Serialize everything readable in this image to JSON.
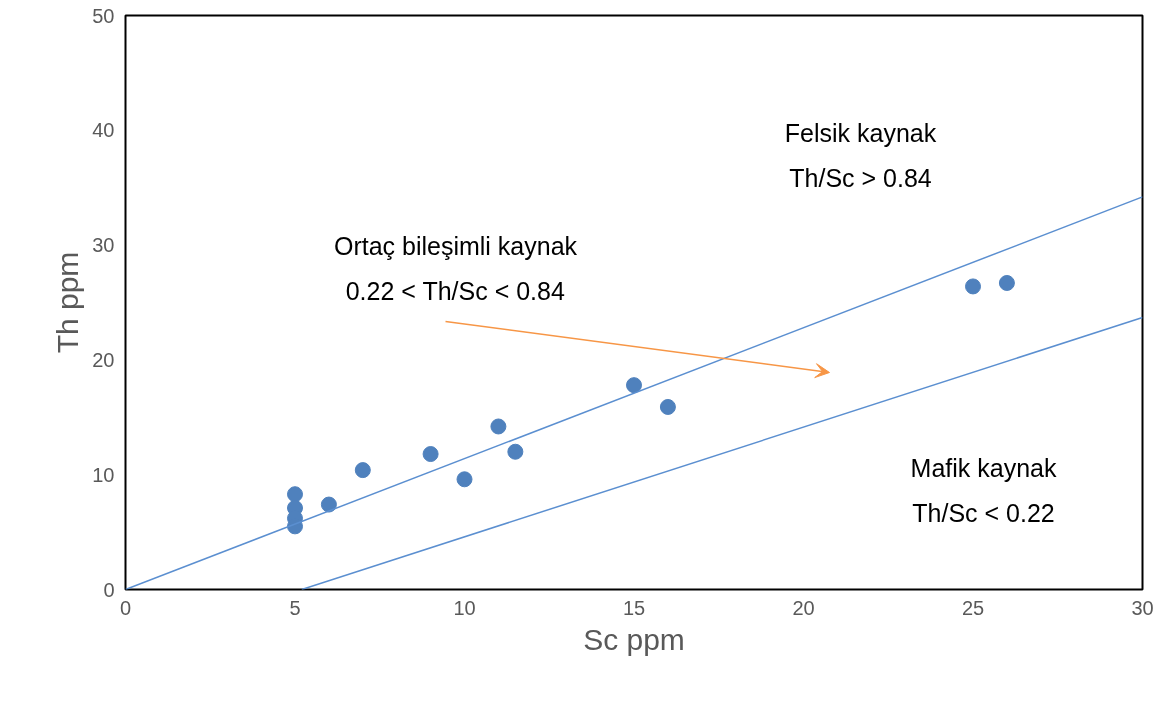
{
  "chart_data": {
    "type": "scatter",
    "xlabel": "Sc ppm",
    "ylabel": "Th ppm",
    "xlim": [
      0,
      30
    ],
    "ylim": [
      0,
      50
    ],
    "xticks": [
      0,
      5,
      10,
      15,
      20,
      25,
      30
    ],
    "yticks": [
      0,
      10,
      20,
      30,
      40,
      50
    ],
    "grid": false,
    "series": [
      {
        "marker": "circle",
        "color": "#4f81bd",
        "x": [
          5,
          5,
          5,
          5,
          6,
          7,
          9,
          10,
          11,
          11.5,
          15,
          16,
          25,
          26
        ],
        "values": [
          8.3,
          7.1,
          6.2,
          5.5,
          7.4,
          10.4,
          11.8,
          9.6,
          14.2,
          12.0,
          17.8,
          15.9,
          26.4,
          26.7
        ]
      },
      {
        "type": "line",
        "color": "#5b8fd0",
        "x": [
          0,
          30
        ],
        "values": [
          0,
          34.2
        ]
      },
      {
        "type": "line",
        "color": "#5b8fd0",
        "x": [
          5.2,
          30
        ],
        "values": [
          0,
          23.7
        ]
      }
    ],
    "annotations": [
      "Felsik kaynak\nTh/Sc > 0.84",
      "Ortaç bileşimli kaynak\n0.22 < Th/Sc < 0.84",
      "Mafik kaynak\nTh/Sc < 0.22"
    ]
  }
}
